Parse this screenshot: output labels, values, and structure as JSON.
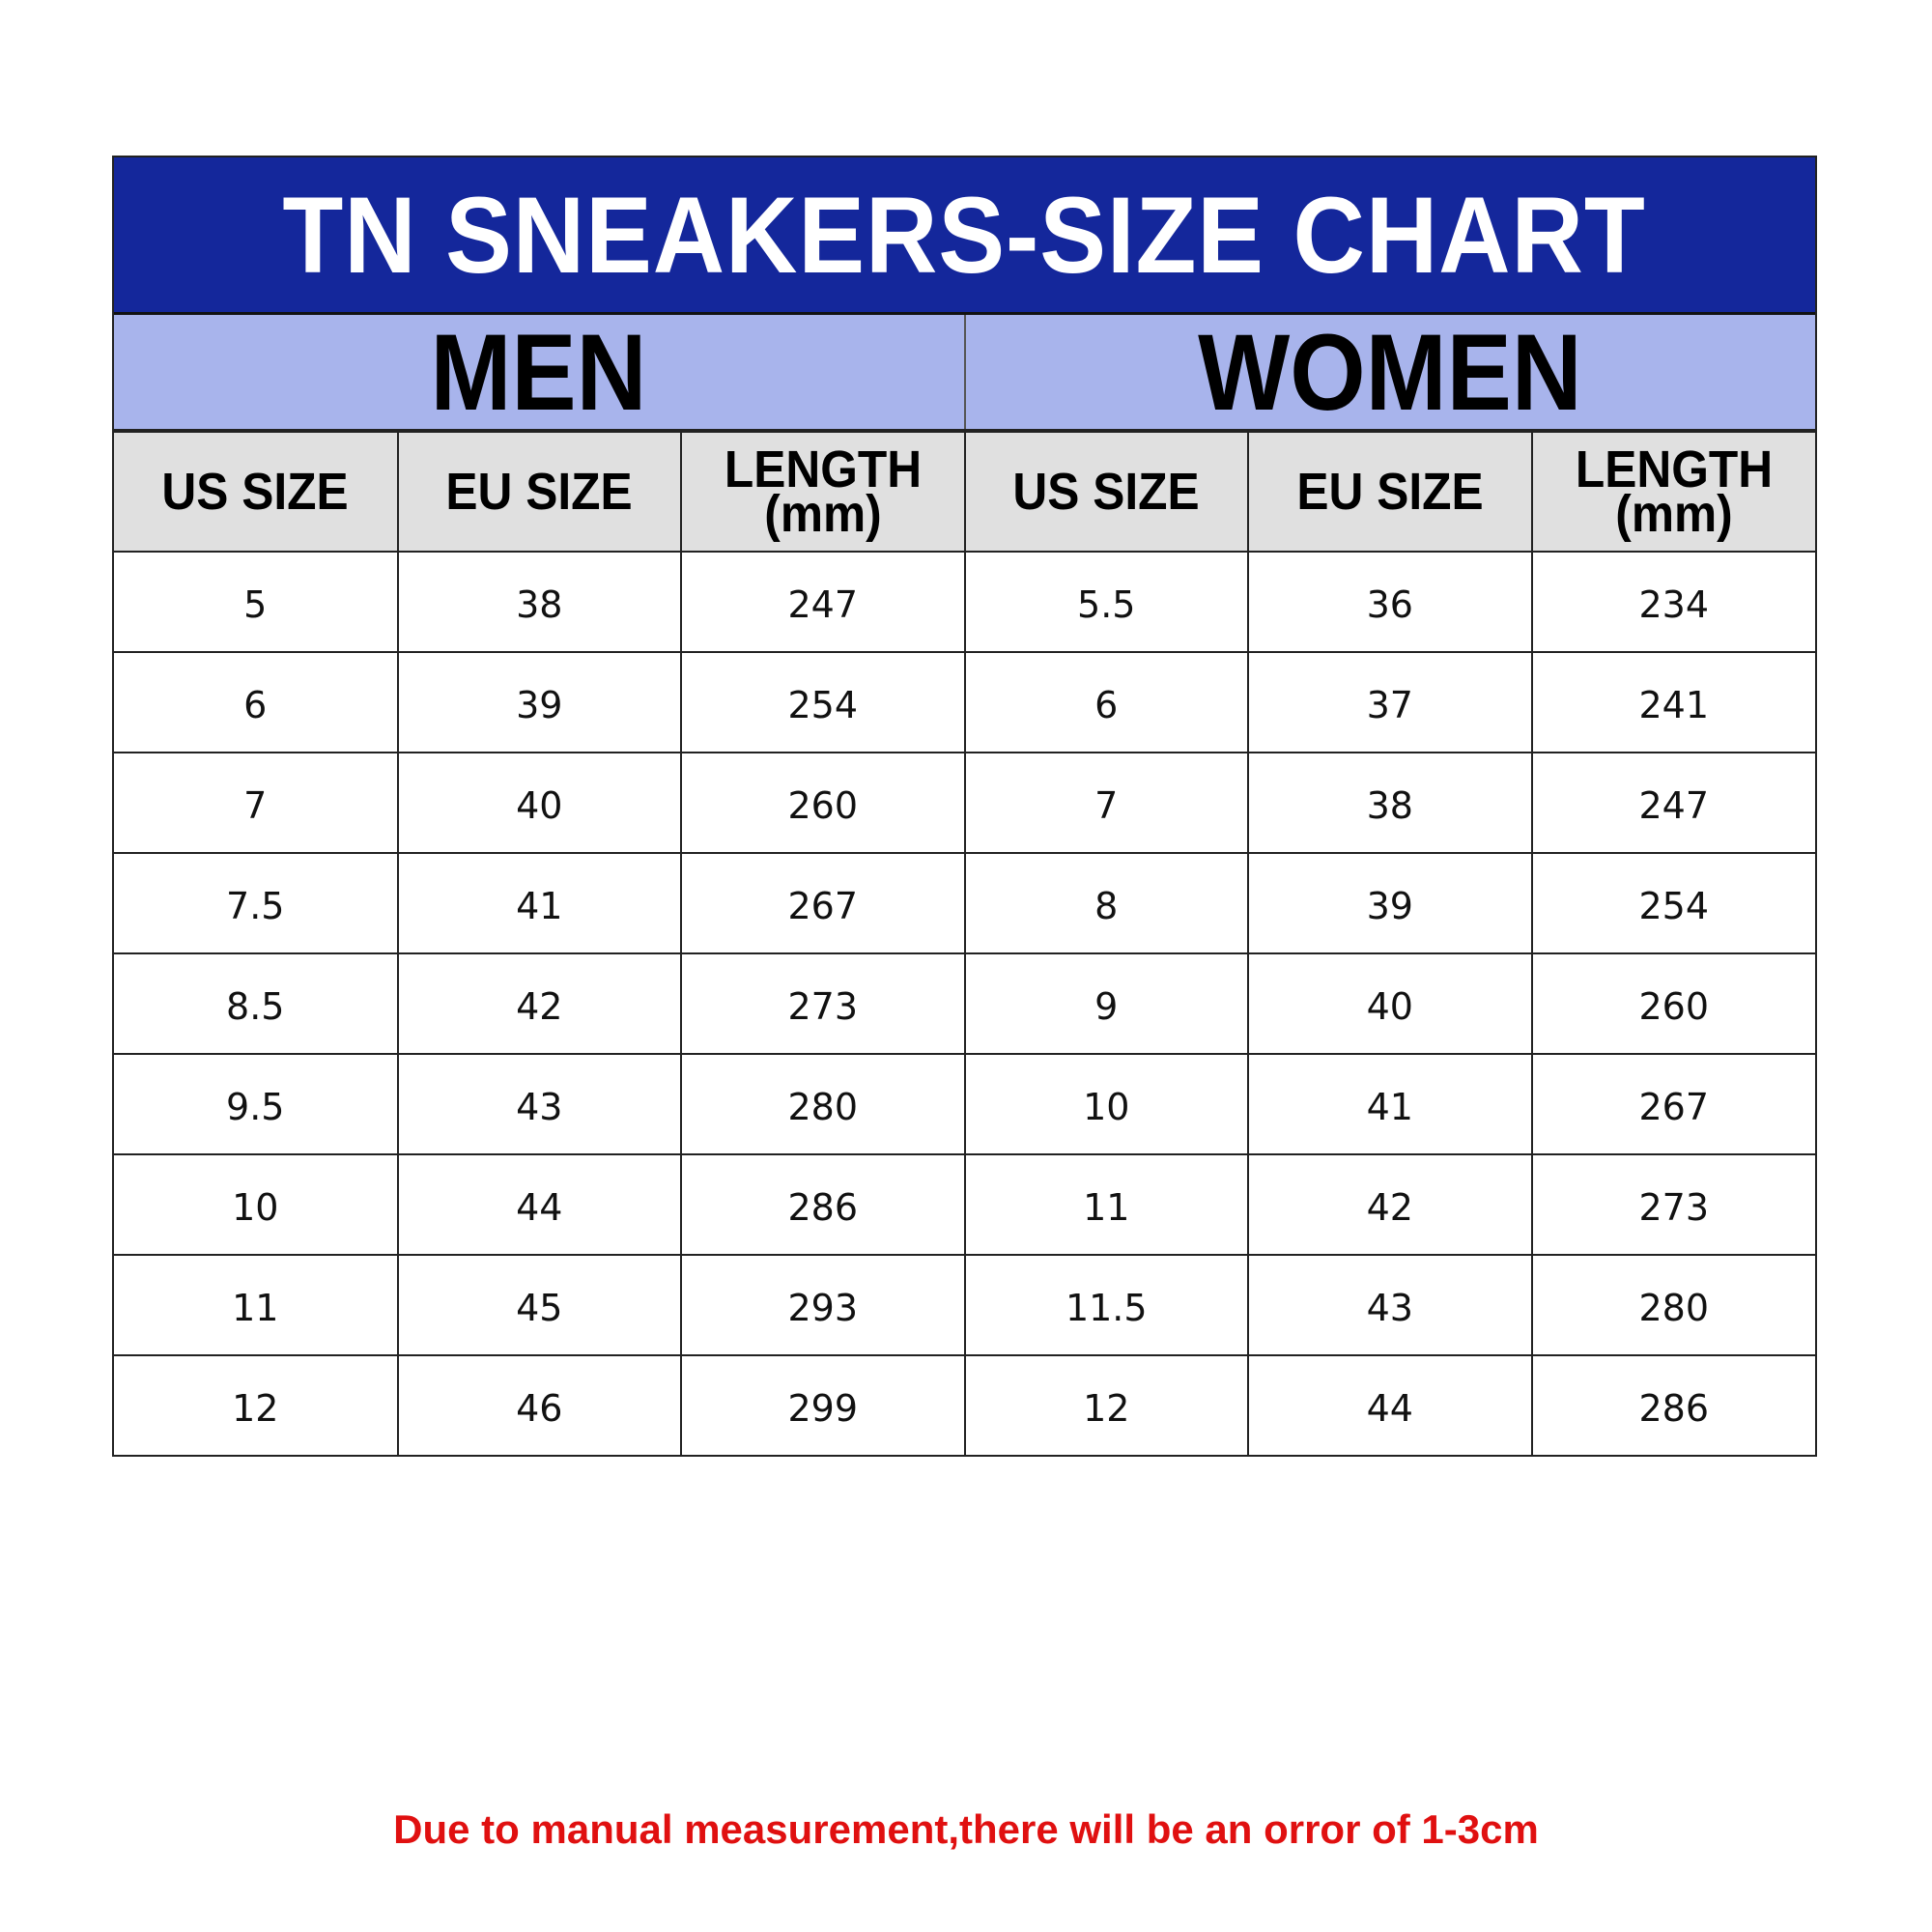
{
  "title": "TN SNEAKERS-SIZE CHART",
  "groups": [
    "MEN",
    "WOMEN"
  ],
  "columns": [
    {
      "line1": "US SIZE",
      "line2": ""
    },
    {
      "line1": "EU SIZE",
      "line2": ""
    },
    {
      "line1": "LENGTH",
      "line2": "(mm)"
    },
    {
      "line1": "US SIZE",
      "line2": ""
    },
    {
      "line1": "EU SIZE",
      "line2": ""
    },
    {
      "line1": "LENGTH",
      "line2": "(mm)"
    }
  ],
  "rows": [
    [
      "5",
      "38",
      "247",
      "5.5",
      "36",
      "234"
    ],
    [
      "6",
      "39",
      "254",
      "6",
      "37",
      "241"
    ],
    [
      "7",
      "40",
      "260",
      "7",
      "38",
      "247"
    ],
    [
      "7.5",
      "41",
      "267",
      "8",
      "39",
      "254"
    ],
    [
      "8.5",
      "42",
      "273",
      "9",
      "40",
      "260"
    ],
    [
      "9.5",
      "43",
      "280",
      "10",
      "41",
      "267"
    ],
    [
      "10",
      "44",
      "286",
      "11",
      "42",
      "273"
    ],
    [
      "11",
      "45",
      "293",
      "11.5",
      "43",
      "280"
    ],
    [
      "12",
      "46",
      "299",
      "12",
      "44",
      "286"
    ]
  ],
  "note": "Due to manual measurement,there will be an orror of 1-3cm",
  "colors": {
    "title_bg": "#14279b",
    "group_bg": "#a8b4ec",
    "header_bg": "#e0e0e0",
    "note": "#e01010"
  }
}
